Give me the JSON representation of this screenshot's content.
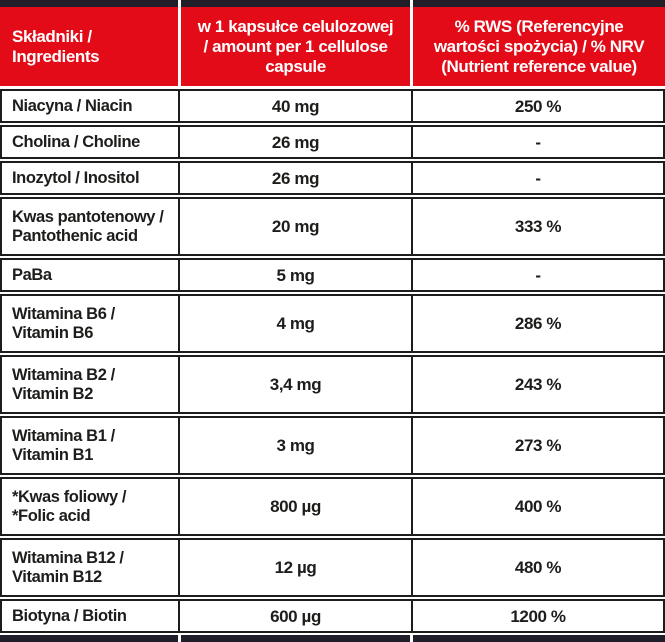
{
  "table": {
    "header": {
      "ingredients": "Składniki /\nIngredients",
      "amount": "w 1 kapsułce celulozowej\n/ amount per 1 cellulose\ncapsule",
      "rws": "% RWS (Referencyjne\nwartości spożycia) / % NRV\n(Nutrient reference value)"
    },
    "rows": [
      {
        "name": "Niacyna / Niacin",
        "amount": "40 mg",
        "rws": "250 %"
      },
      {
        "name": "Cholina / Choline",
        "amount": "26 mg",
        "rws": "-"
      },
      {
        "name": "Inozytol / Inositol",
        "amount": "26 mg",
        "rws": "-"
      },
      {
        "name": "Kwas pantotenowy /\nPantothenic acid",
        "amount": "20 mg",
        "rws": "333 %"
      },
      {
        "name": "PaBa",
        "amount": "5 mg",
        "rws": "-"
      },
      {
        "name": "Witamina B6 /\nVitamin B6",
        "amount": "4 mg",
        "rws": "286 %"
      },
      {
        "name": "Witamina B2 /\nVitamin B2",
        "amount": "3,4 mg",
        "rws": "243 %"
      },
      {
        "name": "Witamina B1 /\nVitamin B1",
        "amount": "3 mg",
        "rws": "273 %"
      },
      {
        "name": "*Kwas foliowy /\n*Folic acid",
        "amount": "800 µg",
        "rws": "400 %"
      },
      {
        "name": "Witamina B12 /\nVitamin B12",
        "amount": "12 µg",
        "rws": "480 %"
      },
      {
        "name": "Biotyna / Biotin",
        "amount": "600 µg",
        "rws": "1200 %"
      }
    ]
  },
  "colors": {
    "header_red": "#e30b17",
    "bar_black": "#201e29",
    "border_black": "#1d1d1b",
    "header_text": "#ffffff",
    "body_text": "#1d1d1b"
  }
}
